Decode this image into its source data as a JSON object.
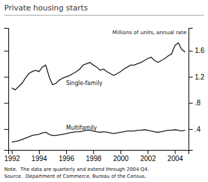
{
  "chart_data": {
    "type": "line",
    "title": "Private housing starts",
    "subtitle": "Millions of units, annual rate",
    "annotations": [
      "Note.  The data are quarterly and extend through 2004:Q4.",
      "Source.  Department of Commerce, Bureau of the Census."
    ],
    "x": [
      1992,
      1992.25,
      1992.5,
      1992.75,
      1993,
      1993.25,
      1993.5,
      1993.75,
      1994,
      1994.25,
      1994.5,
      1994.75,
      1995,
      1995.25,
      1995.5,
      1995.75,
      1996,
      1996.25,
      1996.5,
      1996.75,
      1997,
      1997.25,
      1997.5,
      1997.75,
      1998,
      1998.25,
      1998.5,
      1998.75,
      1999,
      1999.25,
      1999.5,
      1999.75,
      2000,
      2000.25,
      2000.5,
      2000.75,
      2001,
      2001.25,
      2001.5,
      2001.75,
      2002,
      2002.25,
      2002.5,
      2002.75,
      2003,
      2003.25,
      2003.5,
      2003.75,
      2004,
      2004.25,
      2004.5,
      2004.75
    ],
    "series": [
      {
        "name": "Single-family",
        "color": "#1a1a1a",
        "values": [
          1.03,
          1.0,
          1.05,
          1.1,
          1.18,
          1.25,
          1.28,
          1.3,
          1.28,
          1.35,
          1.38,
          1.2,
          1.08,
          1.1,
          1.15,
          1.18,
          1.2,
          1.22,
          1.25,
          1.28,
          1.32,
          1.38,
          1.4,
          1.42,
          1.38,
          1.35,
          1.3,
          1.32,
          1.28,
          1.25,
          1.22,
          1.25,
          1.28,
          1.32,
          1.35,
          1.38,
          1.38,
          1.4,
          1.42,
          1.45,
          1.48,
          1.5,
          1.45,
          1.42,
          1.45,
          1.48,
          1.52,
          1.55,
          1.68,
          1.72,
          1.62,
          1.58
        ]
      },
      {
        "name": "Multifamily",
        "color": "#1a1a1a",
        "values": [
          0.2,
          0.21,
          0.22,
          0.24,
          0.26,
          0.28,
          0.3,
          0.31,
          0.32,
          0.34,
          0.35,
          0.32,
          0.3,
          0.3,
          0.31,
          0.32,
          0.33,
          0.34,
          0.35,
          0.36,
          0.36,
          0.37,
          0.38,
          0.38,
          0.37,
          0.36,
          0.35,
          0.36,
          0.35,
          0.34,
          0.33,
          0.34,
          0.35,
          0.36,
          0.37,
          0.37,
          0.37,
          0.38,
          0.38,
          0.39,
          0.38,
          0.37,
          0.36,
          0.35,
          0.36,
          0.37,
          0.38,
          0.38,
          0.39,
          0.38,
          0.37,
          0.38
        ]
      }
    ],
    "xlim": [
      1991.75,
      2005.0
    ],
    "xticks": [
      1992,
      1994,
      1996,
      1998,
      2000,
      2002,
      2004
    ],
    "ylim": [
      0.08,
      1.95
    ],
    "yticks": [
      {
        "value": 0.4,
        "label": ".4"
      },
      {
        "value": 0.8,
        "label": ".8"
      },
      1.2,
      1.6
    ],
    "grid": false
  }
}
